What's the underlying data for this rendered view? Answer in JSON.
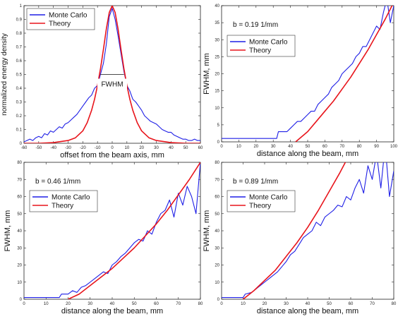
{
  "colors": {
    "monte_carlo": "#1f1fe6",
    "theory": "#e8141b"
  },
  "chart_data": [
    {
      "type": "line",
      "xlabel": "offset from the beam axis, mm",
      "ylabel": "normalized energy density",
      "xlim": [
        -60,
        60
      ],
      "ylim": [
        0,
        1
      ],
      "xticks": [
        -60,
        -50,
        -40,
        -30,
        -20,
        -10,
        0,
        10,
        20,
        30,
        40,
        50,
        60
      ],
      "yticks": [
        0,
        0.1,
        0.2,
        0.3,
        0.4,
        0.5,
        0.6,
        0.7,
        0.8,
        0.9,
        1
      ],
      "legend": [
        "Monte Carlo",
        "Theory"
      ],
      "legend_position": "top-left",
      "annotation": "FWHM",
      "fwhm_level": 0.5,
      "fwhm_range": [
        -8,
        8
      ],
      "series": [
        {
          "name": "Monte Carlo",
          "x": [
            -60,
            -58,
            -56,
            -54,
            -52,
            -50,
            -48,
            -46,
            -44,
            -42,
            -40,
            -38,
            -36,
            -34,
            -32,
            -30,
            -28,
            -26,
            -24,
            -22,
            -20,
            -18,
            -16,
            -14,
            -12,
            -10,
            -8,
            -6,
            -4,
            -2,
            0,
            2,
            4,
            6,
            8,
            10,
            12,
            14,
            16,
            18,
            20,
            22,
            24,
            26,
            28,
            30,
            32,
            34,
            36,
            38,
            40,
            42,
            44,
            46,
            48,
            50,
            52,
            54,
            56,
            58,
            60
          ],
          "y": [
            0.01,
            0.02,
            0.03,
            0.02,
            0.04,
            0.05,
            0.04,
            0.07,
            0.06,
            0.09,
            0.08,
            0.1,
            0.12,
            0.11,
            0.14,
            0.15,
            0.17,
            0.19,
            0.21,
            0.24,
            0.27,
            0.3,
            0.33,
            0.35,
            0.4,
            0.42,
            0.5,
            0.58,
            0.72,
            0.92,
            0.98,
            0.9,
            0.78,
            0.65,
            0.52,
            0.42,
            0.38,
            0.32,
            0.3,
            0.27,
            0.24,
            0.2,
            0.18,
            0.16,
            0.15,
            0.14,
            0.12,
            0.1,
            0.09,
            0.08,
            0.08,
            0.06,
            0.05,
            0.04,
            0.03,
            0.03,
            0.02,
            0.02,
            0.03,
            0.02,
            0.02
          ]
        },
        {
          "name": "Theory",
          "x": [
            -60,
            -50,
            -40,
            -30,
            -25,
            -20,
            -17,
            -14,
            -12,
            -10,
            -8,
            -6,
            -4,
            -2,
            0,
            2,
            4,
            6,
            8,
            10,
            12,
            14,
            17,
            20,
            25,
            30,
            40,
            50,
            60
          ],
          "y": [
            0,
            0,
            0.005,
            0.02,
            0.04,
            0.09,
            0.15,
            0.24,
            0.32,
            0.42,
            0.54,
            0.68,
            0.83,
            0.95,
            1.0,
            0.95,
            0.83,
            0.68,
            0.54,
            0.42,
            0.32,
            0.24,
            0.15,
            0.09,
            0.04,
            0.02,
            0.005,
            0,
            0
          ]
        }
      ]
    },
    {
      "type": "line",
      "xlabel": "distance along the beam, mm",
      "ylabel": "FWHM, mm",
      "annotation": "b = 0.19 1/mm",
      "xlim": [
        0,
        100
      ],
      "ylim": [
        0,
        40
      ],
      "xticks": [
        0,
        10,
        20,
        30,
        40,
        50,
        60,
        70,
        80,
        90,
        100
      ],
      "yticks": [
        0,
        5,
        10,
        15,
        20,
        25,
        30,
        35,
        40
      ],
      "legend": [
        "Monte Carlo",
        "Theory"
      ],
      "legend_position": "top-left",
      "series": [
        {
          "name": "Monte Carlo",
          "x": [
            0,
            32,
            33,
            38,
            40,
            42,
            44,
            46,
            48,
            50,
            52,
            54,
            56,
            58,
            60,
            62,
            64,
            66,
            68,
            70,
            72,
            74,
            76,
            78,
            80,
            82,
            84,
            86,
            88,
            90,
            92,
            94,
            96,
            98,
            100
          ],
          "y": [
            1,
            1,
            3,
            3,
            4,
            5,
            6,
            6,
            7,
            8,
            9,
            9,
            11,
            12,
            13,
            14,
            16,
            17,
            18,
            20,
            21,
            22,
            23,
            25,
            26,
            28,
            28,
            30,
            32,
            34,
            33,
            38,
            42,
            35,
            40
          ]
        },
        {
          "name": "Theory",
          "x": [
            43,
            50,
            55,
            60,
            65,
            70,
            75,
            80,
            85,
            90,
            95,
            100
          ],
          "y": [
            0,
            3,
            6,
            9,
            12,
            15.5,
            19,
            23,
            27,
            31.5,
            36,
            41
          ]
        }
      ]
    },
    {
      "type": "line",
      "xlabel": "distance along the beam, mm",
      "ylabel": "FWHM, mm",
      "annotation": "b = 0.46 1/mm",
      "xlim": [
        0,
        80
      ],
      "ylim": [
        0,
        80
      ],
      "xticks": [
        0,
        10,
        20,
        30,
        40,
        50,
        60,
        70,
        80
      ],
      "yticks": [
        0,
        10,
        20,
        30,
        40,
        50,
        60,
        70,
        80
      ],
      "legend": [
        "Monte Carlo",
        "Theory"
      ],
      "legend_position": "top-left",
      "series": [
        {
          "name": "Monte Carlo",
          "x": [
            0,
            16,
            17,
            20,
            22,
            24,
            26,
            28,
            30,
            32,
            34,
            36,
            38,
            40,
            42,
            44,
            46,
            48,
            50,
            52,
            54,
            56,
            58,
            60,
            62,
            64,
            66,
            68,
            70,
            72,
            74,
            76,
            78,
            80
          ],
          "y": [
            1,
            1,
            3,
            3,
            5,
            4,
            7,
            8,
            10,
            12,
            14,
            16,
            15,
            20,
            22,
            25,
            27,
            30,
            33,
            35,
            34,
            40,
            38,
            45,
            50,
            52,
            58,
            48,
            62,
            55,
            66,
            60,
            50,
            80
          ]
        },
        {
          "name": "Theory",
          "x": [
            20,
            25,
            30,
            35,
            40,
            45,
            50,
            55,
            60,
            65,
            70,
            75,
            80
          ],
          "y": [
            0,
            3,
            8,
            13,
            18,
            24,
            30,
            37,
            44,
            52,
            61,
            70,
            80
          ]
        }
      ]
    },
    {
      "type": "line",
      "xlabel": "distance along the beam, mm",
      "ylabel": "FWHM, mm",
      "annotation": "b = 0.89 1/mm",
      "xlim": [
        0,
        80
      ],
      "ylim": [
        0,
        80
      ],
      "xticks": [
        0,
        10,
        20,
        30,
        40,
        50,
        60,
        70,
        80
      ],
      "yticks": [
        0,
        10,
        20,
        30,
        40,
        50,
        60,
        70,
        80
      ],
      "legend": [
        "Monte Carlo",
        "Theory"
      ],
      "legend_position": "top-left",
      "series": [
        {
          "name": "Monte Carlo",
          "x": [
            0,
            10,
            11,
            14,
            16,
            18,
            20,
            22,
            24,
            26,
            28,
            30,
            32,
            34,
            36,
            38,
            40,
            42,
            44,
            46,
            48,
            50,
            52,
            54,
            56,
            58,
            60,
            62,
            64,
            66,
            68,
            70,
            72,
            74,
            76,
            78,
            80
          ],
          "y": [
            1,
            1,
            3,
            4,
            6,
            8,
            10,
            12,
            14,
            16,
            19,
            22,
            26,
            28,
            32,
            36,
            38,
            40,
            45,
            43,
            48,
            50,
            52,
            55,
            54,
            60,
            58,
            65,
            70,
            62,
            78,
            70,
            85,
            65,
            90,
            60,
            75
          ]
        },
        {
          "name": "Theory",
          "x": [
            10,
            15,
            20,
            25,
            30,
            35,
            40,
            45,
            50,
            55,
            60
          ],
          "y": [
            0,
            5,
            11,
            17,
            25,
            33,
            42,
            52,
            63,
            74,
            86
          ]
        }
      ]
    }
  ]
}
